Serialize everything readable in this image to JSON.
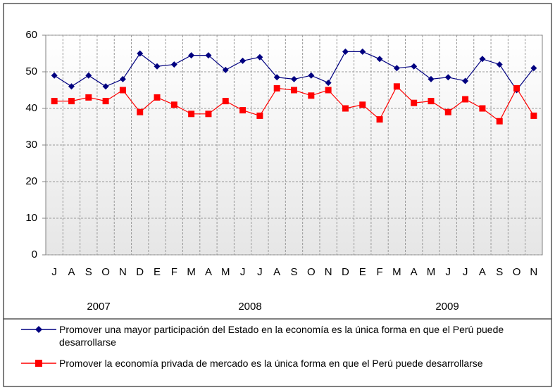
{
  "chart_data": {
    "type": "line",
    "categories": [
      "J",
      "A",
      "S",
      "O",
      "N",
      "D",
      "E",
      "F",
      "M",
      "A",
      "M",
      "J",
      "J",
      "A",
      "S",
      "O",
      "N",
      "D",
      "E",
      "F",
      "M",
      "A",
      "M",
      "J",
      "J",
      "A",
      "S",
      "O",
      "N"
    ],
    "year_labels": [
      "2007",
      "2008",
      "2009"
    ],
    "series": [
      {
        "name": "Promover una mayor participación del Estado en la economía es la única forma en que el Perú puede desarrollarse",
        "color": "#000080",
        "marker": "diamond",
        "values": [
          49,
          46,
          49,
          46,
          48,
          55,
          51.5,
          52,
          54.5,
          54.5,
          50.5,
          53,
          54,
          48.5,
          48,
          49,
          47,
          55.5,
          55.5,
          53.5,
          51,
          51.5,
          48,
          48.5,
          47.5,
          53.5,
          52,
          45,
          51
        ]
      },
      {
        "name": "Promover la economía privada de mercado es la única forma en que el Perú puede desarrollarse",
        "color": "#ff0000",
        "marker": "square",
        "values": [
          42,
          42,
          43,
          42,
          45,
          39,
          43,
          41,
          38.5,
          38.5,
          42,
          39.5,
          38,
          45.5,
          45,
          43.5,
          45,
          40,
          41,
          37,
          46,
          41.5,
          42,
          39,
          42.5,
          40,
          36.5,
          45.5,
          38
        ]
      }
    ],
    "ylim": [
      0,
      60
    ],
    "yticks": [
      0,
      10,
      20,
      30,
      40,
      50,
      60
    ],
    "grid": true,
    "legend": "bottom"
  }
}
